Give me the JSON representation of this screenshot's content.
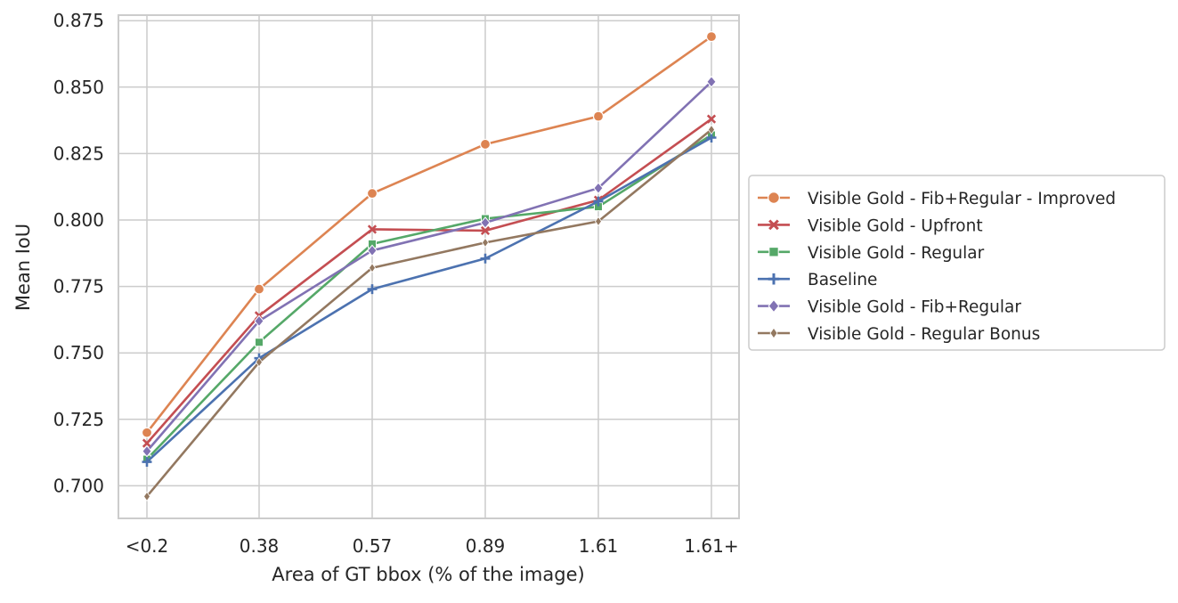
{
  "chart_data": {
    "type": "line",
    "title": "",
    "xlabel": "Area of GT bbox (% of the image)",
    "ylabel": "Mean IoU",
    "categories": [
      "<0.2",
      "0.38",
      "0.57",
      "0.89",
      "1.61",
      "1.61+"
    ],
    "ylim": [
      0.6875,
      0.877
    ],
    "yticks": [
      0.7,
      0.725,
      0.75,
      0.775,
      0.8,
      0.825,
      0.85,
      0.875
    ],
    "ytick_labels": [
      "0.700",
      "0.725",
      "0.750",
      "0.775",
      "0.800",
      "0.825",
      "0.850",
      "0.875"
    ],
    "grid": true,
    "legend_placement": "right-outside",
    "series": [
      {
        "name": "Visible Gold - Fib+Regular - Improved",
        "color": "#dd8452",
        "marker": "circle",
        "values": [
          0.72,
          0.774,
          0.81,
          0.8285,
          0.839,
          0.869
        ]
      },
      {
        "name": "Visible Gold - Upfront",
        "color": "#c44e52",
        "marker": "x",
        "values": [
          0.716,
          0.764,
          0.7965,
          0.796,
          0.8075,
          0.838
        ]
      },
      {
        "name": "Visible Gold - Regular",
        "color": "#55a868",
        "marker": "square",
        "values": [
          0.71,
          0.754,
          0.791,
          0.8005,
          0.805,
          0.832
        ]
      },
      {
        "name": "Baseline",
        "color": "#4c72b0",
        "marker": "plus",
        "values": [
          0.709,
          0.748,
          0.774,
          0.7855,
          0.807,
          0.831
        ]
      },
      {
        "name": "Visible Gold - Fib+Regular",
        "color": "#8172b3",
        "marker": "diamond",
        "values": [
          0.713,
          0.762,
          0.7885,
          0.799,
          0.812,
          0.852
        ]
      },
      {
        "name": "Visible Gold - Regular Bonus",
        "color": "#937860",
        "marker": "thin-diamond",
        "values": [
          0.696,
          0.7465,
          0.782,
          0.7915,
          0.7995,
          0.834
        ]
      }
    ]
  }
}
